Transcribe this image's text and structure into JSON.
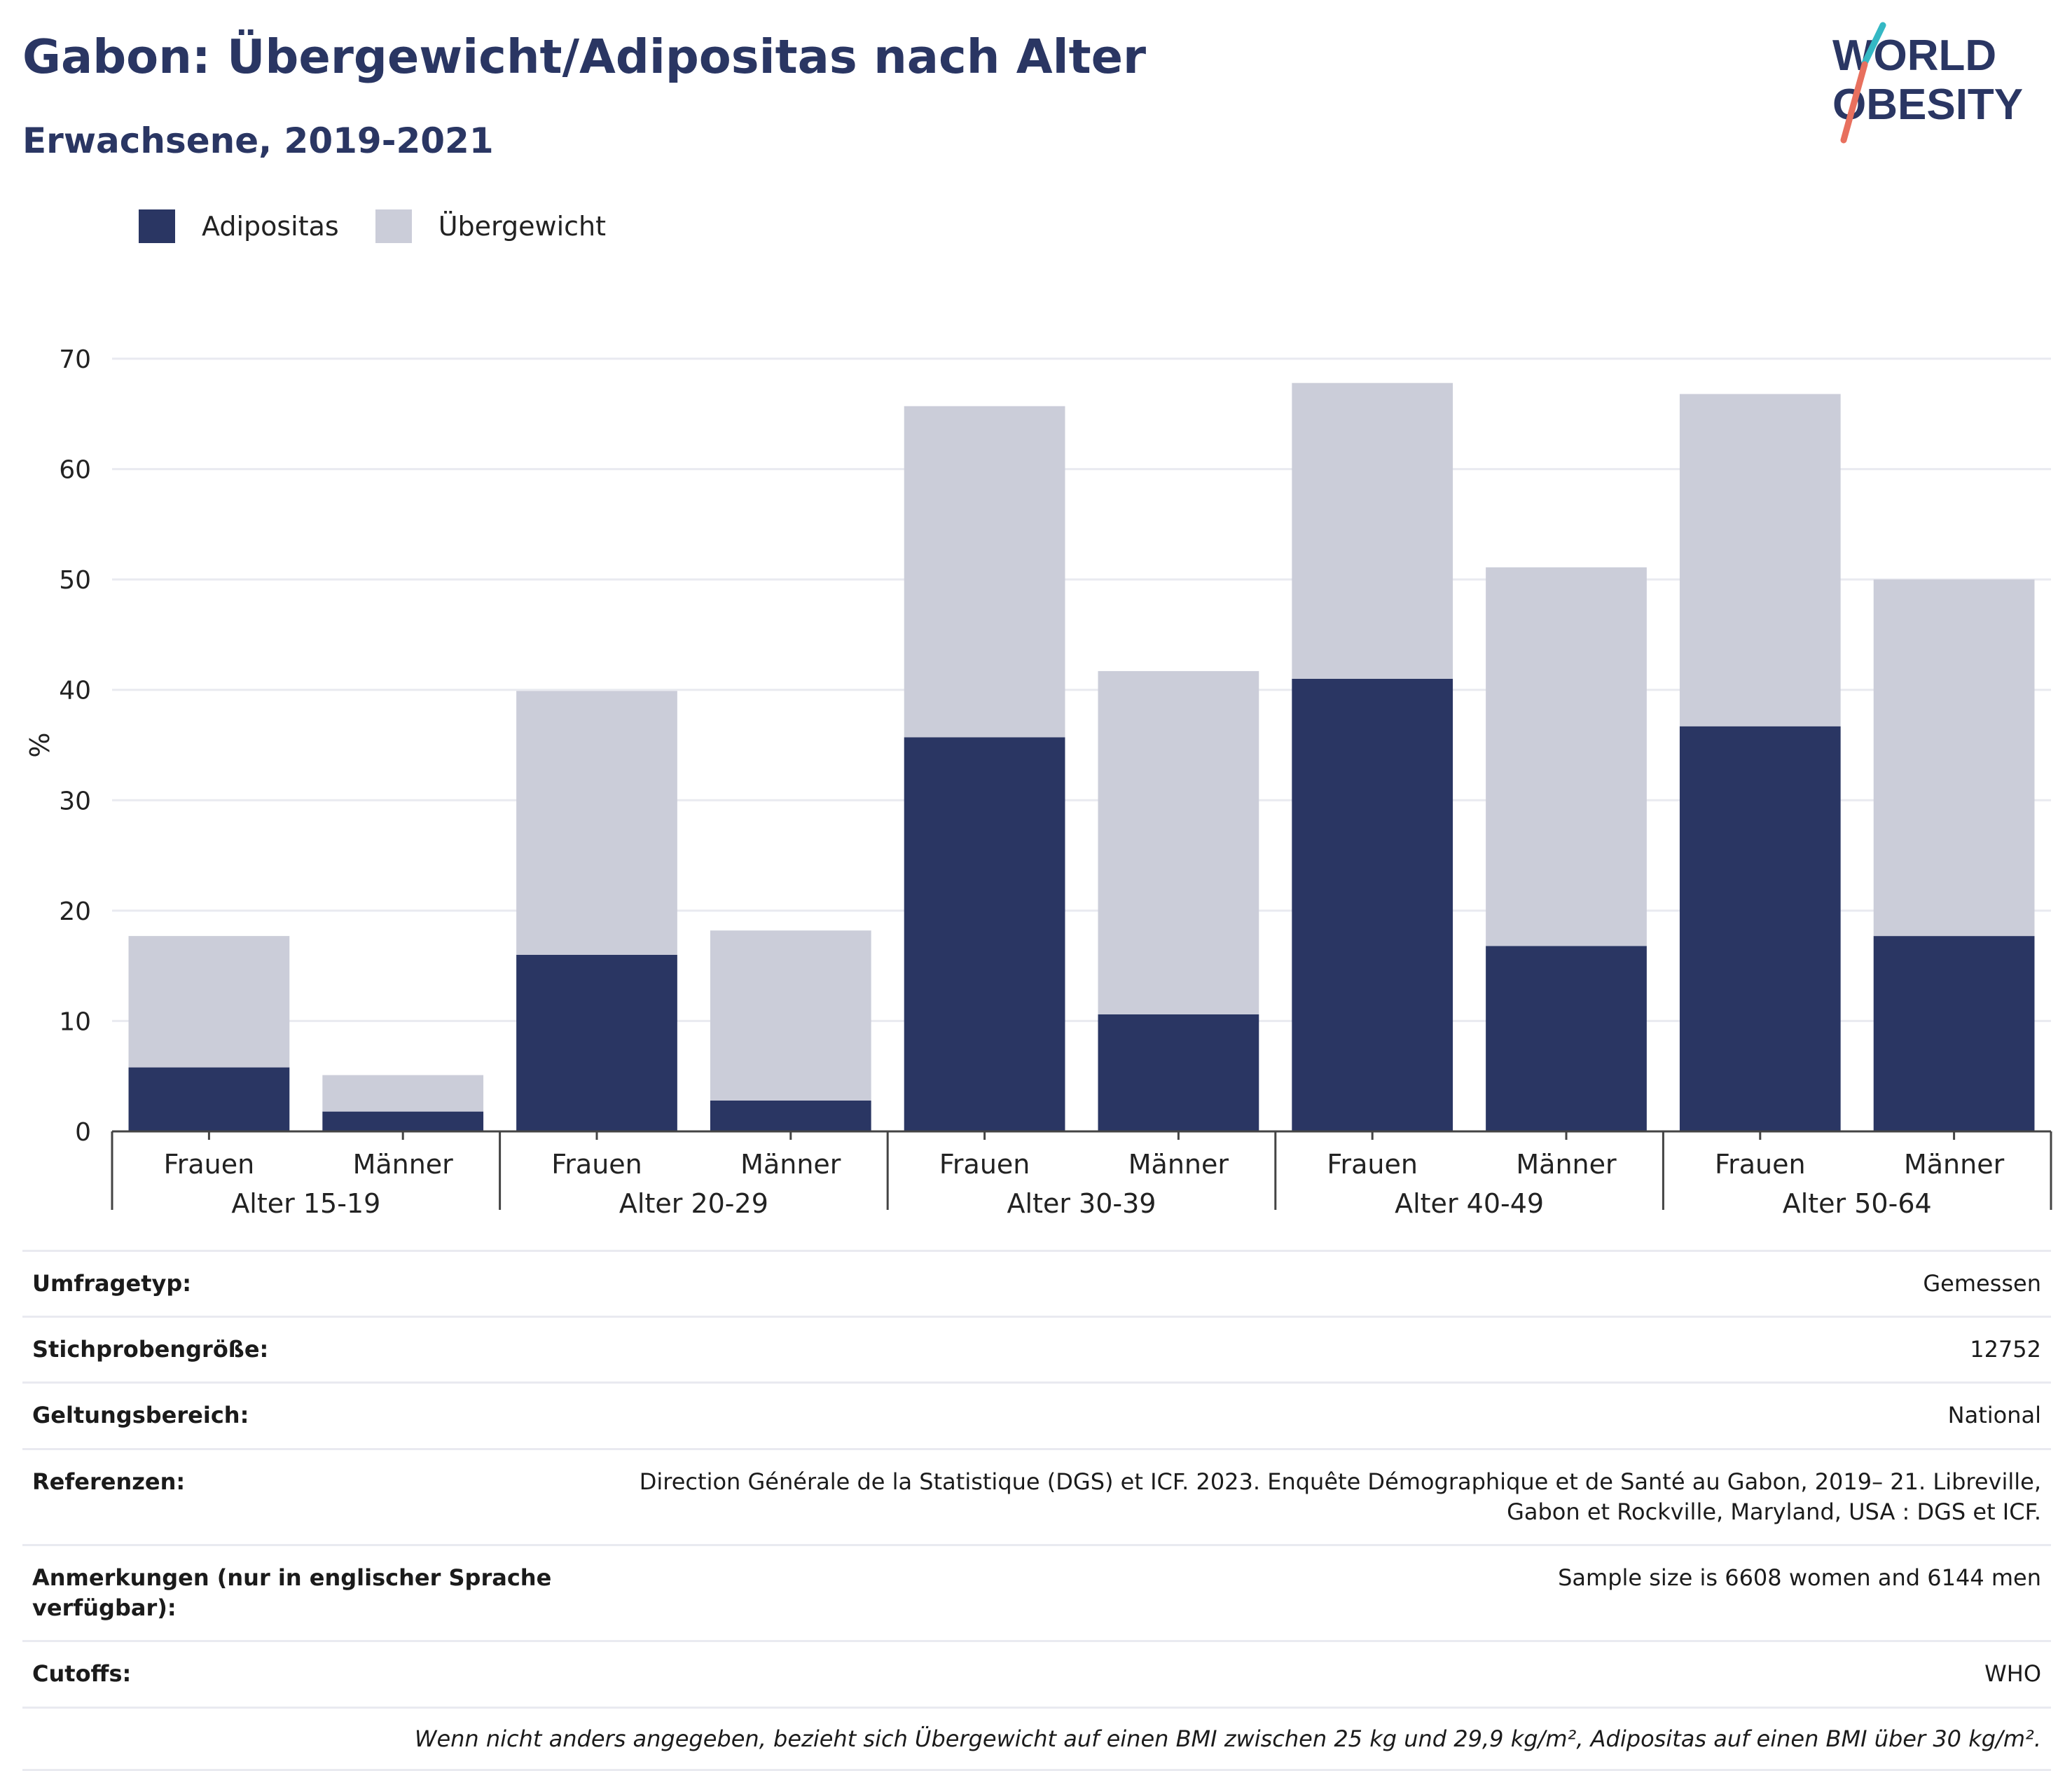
{
  "header": {
    "title": "Gabon: Übergewicht/Adipositas nach Alter",
    "subtitle": "Erwachsene, 2019-2021"
  },
  "logo": {
    "line1": "WORLD",
    "line2": "OBESITY"
  },
  "colors": {
    "adipositas": "#2a3663",
    "uebergewicht": "#cbcdd9",
    "grid": "#e9eaf0",
    "text": "#2a3663"
  },
  "chart_data": {
    "type": "bar",
    "stacked": true,
    "ylabel": "%",
    "ylim": [
      0,
      70
    ],
    "yticks": [
      0,
      10,
      20,
      30,
      40,
      50,
      60,
      70
    ],
    "grid": true,
    "legend_position": "top-left",
    "groups": [
      "Alter 15-19",
      "Alter 20-29",
      "Alter 30-39",
      "Alter 40-49",
      "Alter 50-64"
    ],
    "sub_categories": [
      "Frauen",
      "Männer"
    ],
    "series": [
      {
        "name": "Adipositas",
        "color": "#2a3663",
        "values": [
          5.8,
          1.8,
          16.0,
          2.8,
          35.7,
          10.6,
          41.0,
          16.8,
          36.7,
          17.7
        ]
      },
      {
        "name": "Übergewicht",
        "color": "#cbcdd9",
        "values": [
          11.9,
          3.3,
          23.9,
          15.4,
          30.0,
          31.1,
          26.8,
          34.3,
          30.1,
          32.3
        ]
      }
    ]
  },
  "meta": {
    "rows": [
      {
        "label": "Umfragetyp:",
        "value": "Gemessen"
      },
      {
        "label": "Stichprobengröße:",
        "value": "12752"
      },
      {
        "label": "Geltungsbereich:",
        "value": "National"
      },
      {
        "label": "Referenzen:",
        "value": "Direction Générale de la Statistique (DGS) et ICF. 2023. Enquête Démographique et de Santé au Gabon, 2019– 21. Libreville, Gabon et Rockville, Maryland, USA : DGS et ICF."
      },
      {
        "label": "Anmerkungen (nur in englischer Sprache verfügbar):",
        "value": "Sample size is 6608 women and 6144 men"
      },
      {
        "label": "Cutoffs:",
        "value": "WHO"
      }
    ],
    "note": "Wenn nicht anders angegeben, bezieht sich Übergewicht auf einen BMI zwischen 25 kg und 29,9 kg/m², Adipositas auf einen BMI über 30 kg/m²."
  }
}
